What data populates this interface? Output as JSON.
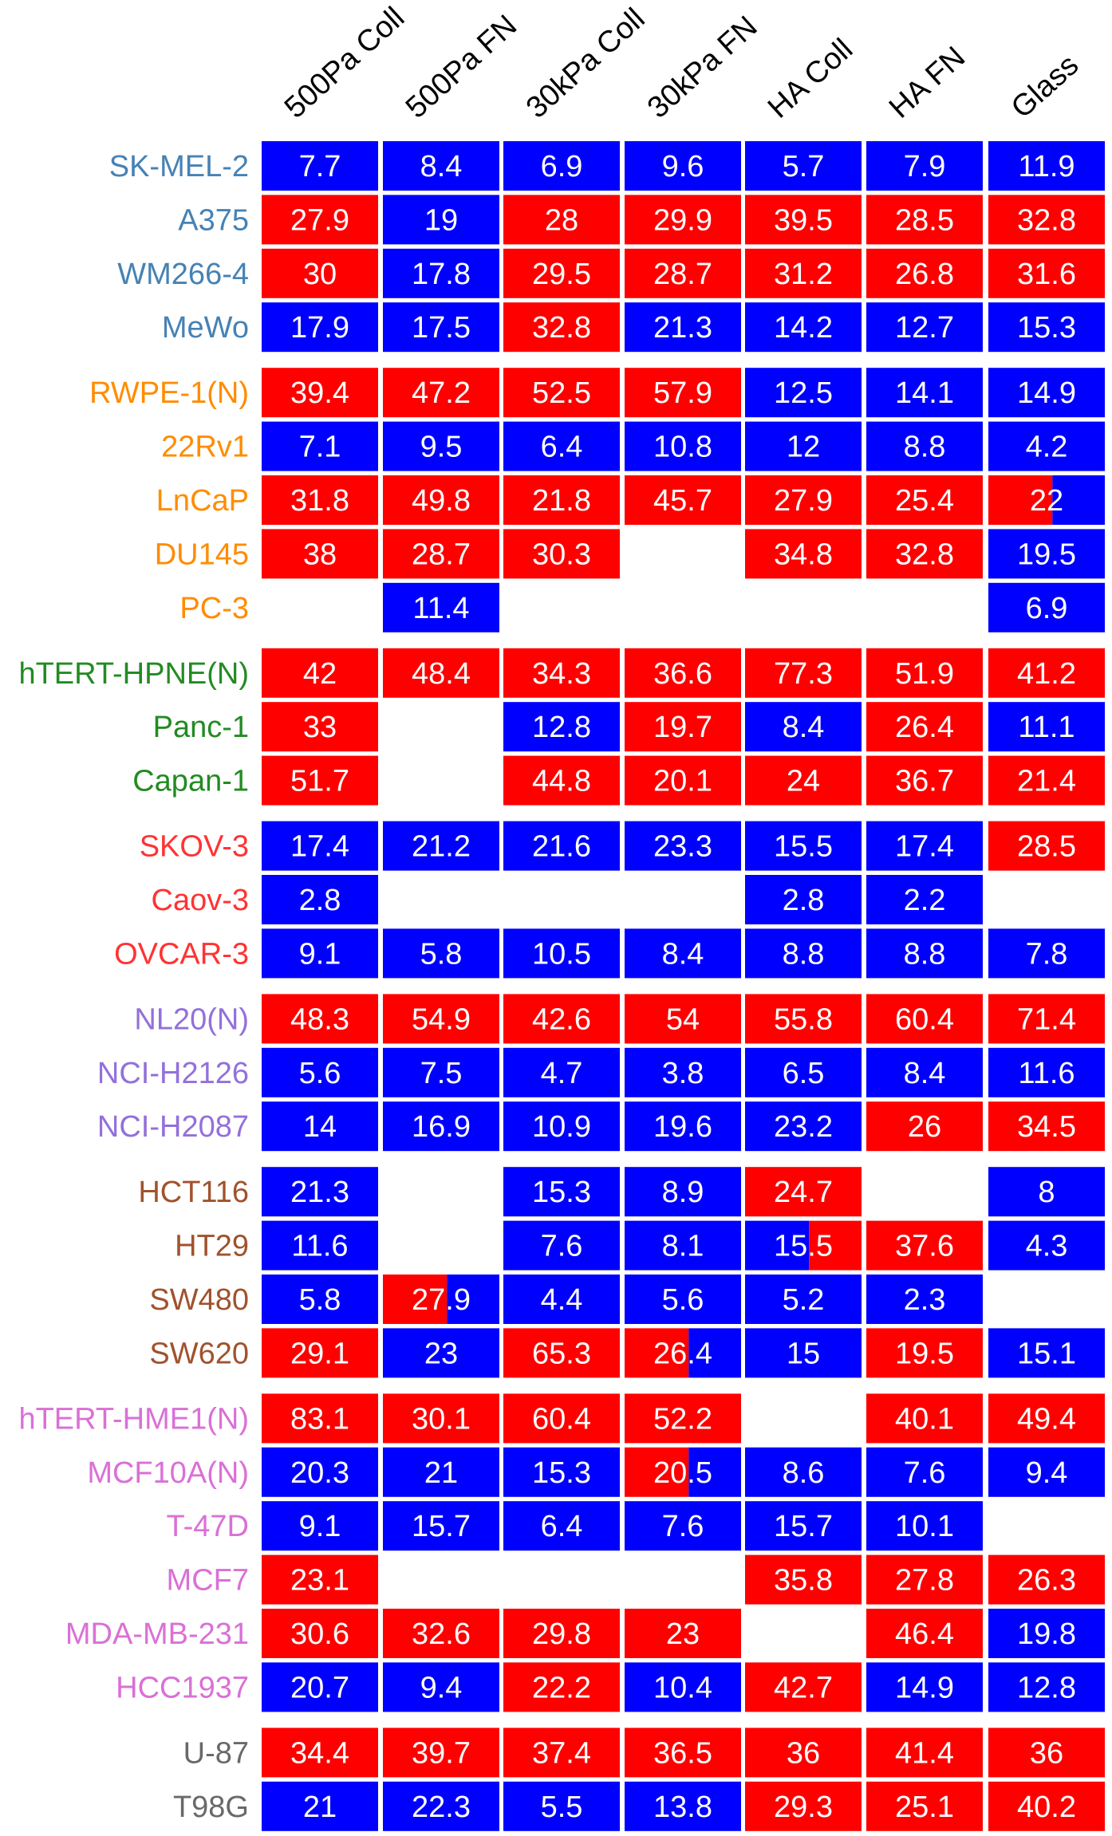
{
  "chart_data": {
    "type": "heatmap",
    "columns": [
      "500Pa Coll",
      "500Pa FN",
      "30kPa Coll",
      "30kPa FN",
      "HA Coll",
      "HA FN",
      "Glass"
    ],
    "legend": "none",
    "grid": false,
    "groups": [
      {
        "color": "#4682B4",
        "rows": [
          {
            "label": "SK-MEL-2",
            "values": [
              "7.7",
              "8.4",
              "6.9",
              "9.6",
              "5.7",
              "7.9",
              "11.9"
            ],
            "colors": [
              "blue",
              "blue",
              "blue",
              "blue",
              "blue",
              "blue",
              "blue"
            ]
          },
          {
            "label": "A375",
            "values": [
              "27.9",
              "19",
              "28",
              "29.9",
              "39.5",
              "28.5",
              "32.8"
            ],
            "colors": [
              "red",
              "blue",
              "red",
              "red",
              "red",
              "red",
              "red"
            ]
          },
          {
            "label": "WM266-4",
            "values": [
              "30",
              "17.8",
              "29.5",
              "28.7",
              "31.2",
              "26.8",
              "31.6"
            ],
            "colors": [
              "red",
              "blue",
              "red",
              "red",
              "red",
              "red",
              "red"
            ]
          },
          {
            "label": "MeWo",
            "values": [
              "17.9",
              "17.5",
              "32.8",
              "21.3",
              "14.2",
              "12.7",
              "15.3"
            ],
            "colors": [
              "blue",
              "blue",
              "red",
              "blue",
              "blue",
              "blue",
              "blue"
            ]
          }
        ]
      },
      {
        "color": "#FF8C00",
        "rows": [
          {
            "label": "RWPE-1(N)",
            "values": [
              "39.4",
              "47.2",
              "52.5",
              "57.9",
              "12.5",
              "14.1",
              "14.9"
            ],
            "colors": [
              "red",
              "red",
              "red",
              "red",
              "blue",
              "blue",
              "blue"
            ]
          },
          {
            "label": "22Rv1",
            "values": [
              "7.1",
              "9.5",
              "6.4",
              "10.8",
              "12",
              "8.8",
              "4.2"
            ],
            "colors": [
              "blue",
              "blue",
              "blue",
              "blue",
              "blue",
              "blue",
              "blue"
            ]
          },
          {
            "label": "LnCaP",
            "values": [
              "31.8",
              "49.8",
              "21.8",
              "45.7",
              "27.9",
              "25.4",
              "22"
            ],
            "colors": [
              "red",
              "red",
              "red",
              "red",
              "red",
              "red",
              "red|blue"
            ]
          },
          {
            "label": "DU145",
            "values": [
              "38",
              "28.7",
              "30.3",
              null,
              "34.8",
              "32.8",
              "19.5"
            ],
            "colors": [
              "red",
              "red",
              "red",
              null,
              "red",
              "red",
              "blue"
            ]
          },
          {
            "label": "PC-3",
            "values": [
              null,
              "11.4",
              null,
              null,
              null,
              null,
              "6.9"
            ],
            "colors": [
              null,
              "blue",
              null,
              null,
              null,
              null,
              "blue"
            ]
          }
        ]
      },
      {
        "color": "#228B22",
        "rows": [
          {
            "label": "hTERT-HPNE(N)",
            "values": [
              "42",
              "48.4",
              "34.3",
              "36.6",
              "77.3",
              "51.9",
              "41.2"
            ],
            "colors": [
              "red",
              "red",
              "red",
              "red",
              "red",
              "red",
              "red"
            ]
          },
          {
            "label": "Panc-1",
            "values": [
              "33",
              null,
              "12.8",
              "19.7",
              "8.4",
              "26.4",
              "11.1"
            ],
            "colors": [
              "red",
              null,
              "blue",
              "red",
              "blue",
              "red",
              "blue"
            ]
          },
          {
            "label": "Capan-1",
            "values": [
              "51.7",
              null,
              "44.8",
              "20.1",
              "24",
              "36.7",
              "21.4"
            ],
            "colors": [
              "red",
              null,
              "red",
              "red",
              "red",
              "red",
              "red"
            ]
          }
        ]
      },
      {
        "color": "#FF3333",
        "rows": [
          {
            "label": "SKOV-3",
            "values": [
              "17.4",
              "21.2",
              "21.6",
              "23.3",
              "15.5",
              "17.4",
              "28.5"
            ],
            "colors": [
              "blue",
              "blue",
              "blue",
              "blue",
              "blue",
              "blue",
              "red"
            ]
          },
          {
            "label": "Caov-3",
            "values": [
              "2.8",
              null,
              null,
              null,
              "2.8",
              "2.2",
              null
            ],
            "colors": [
              "blue",
              null,
              null,
              null,
              "blue",
              "blue",
              null
            ]
          },
          {
            "label": "OVCAR-3",
            "values": [
              "9.1",
              "5.8",
              "10.5",
              "8.4",
              "8.8",
              "8.8",
              "7.8"
            ],
            "colors": [
              "blue",
              "blue",
              "blue",
              "blue",
              "blue",
              "blue",
              "blue"
            ]
          }
        ]
      },
      {
        "color": "#9370DB",
        "rows": [
          {
            "label": "NL20(N)",
            "values": [
              "48.3",
              "54.9",
              "42.6",
              "54",
              "55.8",
              "60.4",
              "71.4"
            ],
            "colors": [
              "red",
              "red",
              "red",
              "red",
              "red",
              "red",
              "red"
            ]
          },
          {
            "label": "NCI-H2126",
            "values": [
              "5.6",
              "7.5",
              "4.7",
              "3.8",
              "6.5",
              "8.4",
              "11.6"
            ],
            "colors": [
              "blue",
              "blue",
              "blue",
              "blue",
              "blue",
              "blue",
              "blue"
            ]
          },
          {
            "label": "NCI-H2087",
            "values": [
              "14",
              "16.9",
              "10.9",
              "19.6",
              "23.2",
              "26",
              "34.5"
            ],
            "colors": [
              "blue",
              "blue",
              "blue",
              "blue",
              "blue",
              "red",
              "red"
            ]
          }
        ]
      },
      {
        "color": "#A0522D",
        "rows": [
          {
            "label": "HCT116",
            "values": [
              "21.3",
              null,
              "15.3",
              "8.9",
              "24.7",
              null,
              "8"
            ],
            "colors": [
              "blue",
              null,
              "blue",
              "blue",
              "red",
              null,
              "blue"
            ]
          },
          {
            "label": "HT29",
            "values": [
              "11.6",
              null,
              "7.6",
              "8.1",
              "15.5",
              "37.6",
              "4.3"
            ],
            "colors": [
              "blue",
              null,
              "blue",
              "blue",
              "blue|red",
              "red",
              "blue"
            ]
          },
          {
            "label": "SW480",
            "values": [
              "5.8",
              "27.9",
              "4.4",
              "5.6",
              "5.2",
              "2.3",
              null
            ],
            "colors": [
              "blue",
              "red|blue",
              "blue",
              "blue",
              "blue",
              "blue",
              null
            ]
          },
          {
            "label": "SW620",
            "values": [
              "29.1",
              "23",
              "65.3",
              "26.4",
              "15",
              "19.5",
              "15.1"
            ],
            "colors": [
              "red",
              "blue",
              "red",
              "red|blue",
              "blue",
              "red",
              "blue"
            ]
          }
        ]
      },
      {
        "color": "#DA70D6",
        "rows": [
          {
            "label": "hTERT-HME1(N)",
            "values": [
              "83.1",
              "30.1",
              "60.4",
              "52.2",
              null,
              "40.1",
              "49.4"
            ],
            "colors": [
              "red",
              "red",
              "red",
              "red",
              null,
              "red",
              "red"
            ]
          },
          {
            "label": "MCF10A(N)",
            "values": [
              "20.3",
              "21",
              "15.3",
              "20.5",
              "8.6",
              "7.6",
              "9.4"
            ],
            "colors": [
              "blue",
              "blue",
              "blue",
              "red|blue",
              "blue",
              "blue",
              "blue"
            ]
          },
          {
            "label": "T-47D",
            "values": [
              "9.1",
              "15.7",
              "6.4",
              "7.6",
              "15.7",
              "10.1",
              null
            ],
            "colors": [
              "blue",
              "blue",
              "blue",
              "blue",
              "blue",
              "blue",
              null
            ]
          },
          {
            "label": "MCF7",
            "values": [
              "23.1",
              null,
              null,
              null,
              "35.8",
              "27.8",
              "26.3"
            ],
            "colors": [
              "red",
              null,
              null,
              null,
              "red",
              "red",
              "red"
            ]
          },
          {
            "label": "MDA-MB-231",
            "values": [
              "30.6",
              "32.6",
              "29.8",
              "23",
              null,
              "46.4",
              "19.8"
            ],
            "colors": [
              "red",
              "red",
              "red",
              "red",
              null,
              "red",
              "blue"
            ]
          },
          {
            "label": "HCC1937",
            "values": [
              "20.7",
              "9.4",
              "22.2",
              "10.4",
              "42.7",
              "14.9",
              "12.8"
            ],
            "colors": [
              "blue",
              "blue",
              "red",
              "blue",
              "red",
              "blue",
              "blue"
            ]
          }
        ]
      },
      {
        "color": "#696969",
        "rows": [
          {
            "label": "U-87",
            "values": [
              "34.4",
              "39.7",
              "37.4",
              "36.5",
              "36",
              "41.4",
              "36"
            ],
            "colors": [
              "red",
              "red",
              "red",
              "red",
              "red",
              "red",
              "red"
            ]
          },
          {
            "label": "T98G",
            "values": [
              "21",
              "22.3",
              "5.5",
              "13.8",
              "29.3",
              "25.1",
              "40.2"
            ],
            "colors": [
              "blue",
              "blue",
              "blue",
              "blue",
              "red",
              "red",
              "red"
            ]
          }
        ]
      }
    ],
    "cell_colors": {
      "red": "#FF0000",
      "blue": "#0000FF"
    },
    "value_text_color": "#FFFFFF"
  }
}
